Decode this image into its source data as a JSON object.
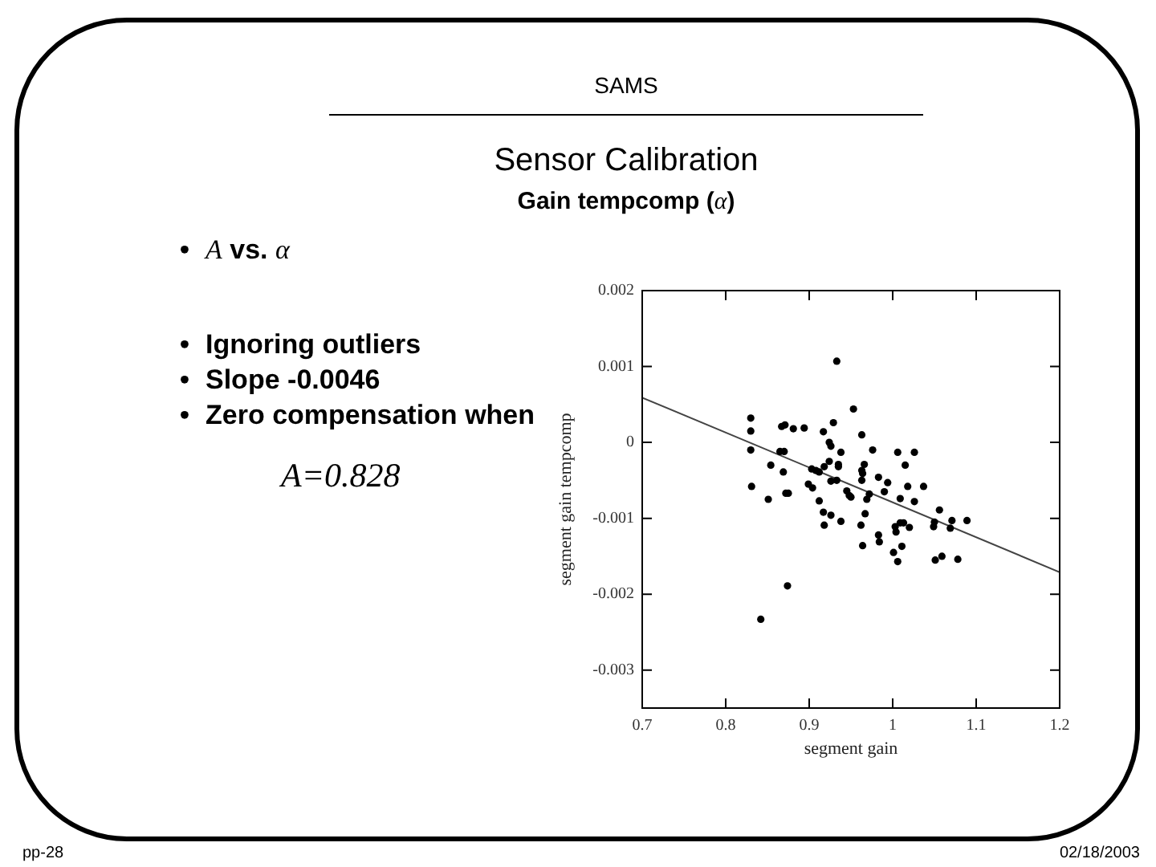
{
  "chart_data": {
    "type": "scatter",
    "title": "SAMS",
    "subtitle": "Sensor Calibration",
    "xlabel": "segment gain",
    "ylabel": "segment gain tempcomp",
    "xlim": [
      0.7,
      1.2
    ],
    "xticks": [
      0.7,
      0.8,
      0.9,
      1,
      1.1,
      1.2
    ],
    "ylim": [
      -0.0035,
      0.002
    ],
    "yticks": [
      -0.003,
      -0.002,
      -0.001,
      0,
      0.001,
      0.002
    ],
    "grid": false,
    "legend": false,
    "marker": "circle",
    "series": [
      {
        "color": "#000000",
        "x": [
          0.953,
          0.83,
          0.83,
          0.83,
          0.831,
          0.867,
          0.871,
          0.881,
          0.894,
          0.929,
          0.917,
          0.924,
          0.926,
          0.963,
          0.938,
          0.924,
          0.935,
          0.935,
          0.865,
          0.87,
          0.854,
          0.869,
          0.903,
          0.908,
          0.912,
          0.918,
          0.899,
          0.904,
          0.851,
          0.872,
          0.875,
          0.926,
          0.933,
          0.945,
          0.948,
          0.95,
          0.963,
          0.964,
          0.966,
          0.963,
          0.972,
          0.976,
          0.983,
          0.994,
          0.99,
          0.969,
          0.912,
          0.917,
          0.926,
          0.918,
          0.938,
          0.967,
          0.962,
          0.964,
          0.983,
          0.984,
          1.003,
          1.004,
          1.009,
          1.013,
          1.02,
          1.011,
          1.001,
          1.006,
          1.006,
          1.026,
          1.015,
          1.018,
          1.037,
          1.009,
          1.026,
          1.056,
          1.05,
          1.049,
          1.071,
          1.069,
          1.089,
          1.051,
          1.059,
          1.078,
          0.933,
          0.874,
          0.842
        ],
        "values": [
          0.00044,
          0.00032,
          0.00015,
          -0.0001,
          -0.00058,
          0.00021,
          0.00023,
          0.00018,
          0.00019,
          0.00026,
          0.00014,
          0,
          -5e-05,
          0.0001,
          -0.00013,
          -0.00025,
          -0.00029,
          -0.00032,
          -0.00012,
          -0.00012,
          -0.0003,
          -0.00039,
          -0.00035,
          -0.00037,
          -0.00039,
          -0.00032,
          -0.00055,
          -0.0006,
          -0.00075,
          -0.00067,
          -0.00067,
          -0.00051,
          -0.0005,
          -0.00064,
          -0.0007,
          -0.00072,
          -0.00037,
          -0.00041,
          -0.00029,
          -0.0005,
          -0.00068,
          -0.0001,
          -0.00046,
          -0.00053,
          -0.00065,
          -0.00075,
          -0.00077,
          -0.00092,
          -0.00096,
          -0.00109,
          -0.00104,
          -0.00094,
          -0.00109,
          -0.00136,
          -0.00122,
          -0.00131,
          -0.00111,
          -0.00118,
          -0.00106,
          -0.00106,
          -0.00112,
          -0.00137,
          -0.00145,
          -0.00157,
          -0.00013,
          -0.00013,
          -0.0003,
          -0.00058,
          -0.00058,
          -0.00074,
          -0.00078,
          -0.00089,
          -0.00105,
          -0.00111,
          -0.00103,
          -0.00113,
          -0.00103,
          -0.00155,
          -0.0015,
          -0.00154,
          0.00107,
          -0.00189,
          -0.00233
        ]
      },
      {
        "type": "line",
        "color": "#444444",
        "x": [
          0.7,
          1.2
        ],
        "values": [
          0.00059,
          -0.00171
        ],
        "marker": "none",
        "line_style": "solid"
      }
    ],
    "annotations": [
      "Gain tempcomp (α)",
      "• A vs. α",
      "• Ignoring outliers",
      "• Slope -0.0046",
      "• Zero compensation when",
      "A=0.828",
      "pp-28",
      "02/18/2003"
    ]
  }
}
